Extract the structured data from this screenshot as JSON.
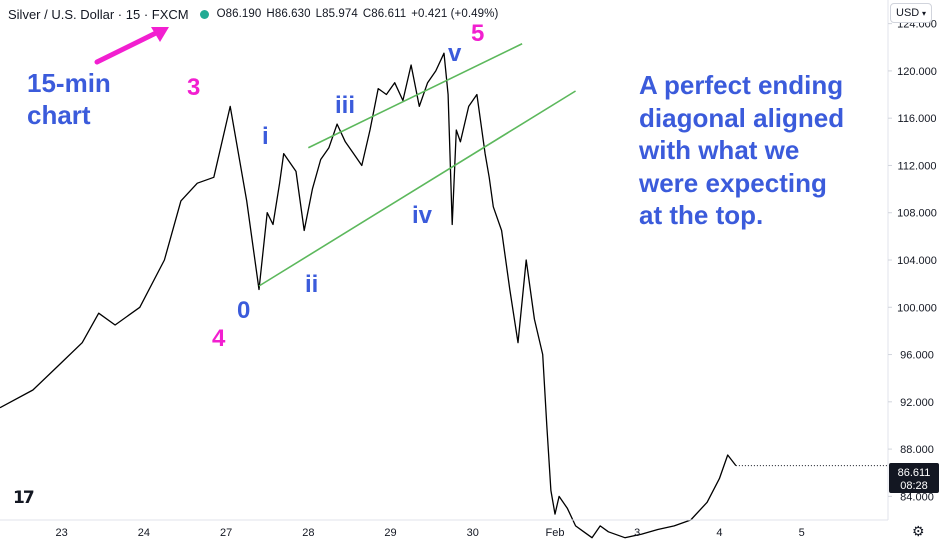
{
  "header": {
    "symbol": "Silver / U.S. Dollar · 15 · FXCM",
    "open": "O86.190",
    "high": "H86.630",
    "low": "L85.974",
    "close": "C86.611",
    "change": "+0.421 (+0.49%)"
  },
  "currency_label": "USD",
  "price_label": {
    "value": "86.611",
    "timer": "08:28"
  },
  "annotations": {
    "chart_note": "15-min\nchart",
    "main_note": "A perfect ending\ndiagonal aligned\nwith what we\nwere expecting\nat the top.",
    "label_3": "3",
    "label_4": "4",
    "label_5": "5",
    "label_0": "0",
    "label_i": "i",
    "label_ii": "ii",
    "label_iii": "iii",
    "label_iv": "iv",
    "label_v": "v"
  },
  "colors": {
    "wave_blue": "#3b5bdb",
    "wave_pink": "#f21fd0",
    "trendline": "#5cb85c",
    "price_line": "#000000",
    "arrow": "#f21fd0"
  },
  "chart_data": {
    "type": "line",
    "symbol": "XAGUSD",
    "interval": "15",
    "ylim": [
      82,
      126
    ],
    "yticks": [
      84,
      88,
      92,
      96,
      100,
      104,
      108,
      112,
      116,
      120,
      124
    ],
    "ytick_labels": [
      "84.000",
      "88.000",
      "92.000",
      "96.000",
      "100.000",
      "104.000",
      "108.000",
      "112.000",
      "116.000",
      "120.000",
      "124.000"
    ],
    "xtick_labels": [
      "23",
      "24",
      "27",
      "28",
      "29",
      "30",
      "Feb",
      "3",
      "4",
      "5"
    ],
    "xtick_positions": [
      0.35,
      1.35,
      2.35,
      3.35,
      4.35,
      5.35,
      6.35,
      7.35,
      8.35,
      9.35
    ],
    "xlim": [
      -0.4,
      10.4
    ],
    "series": [
      {
        "x": [
          -0.4,
          0.0,
          0.3,
          0.6,
          0.8,
          1.0,
          1.3,
          1.6,
          1.8,
          2.0,
          2.2,
          2.4,
          2.6,
          2.75,
          2.85,
          2.92,
          3.0,
          3.05,
          3.2,
          3.3,
          3.4,
          3.5,
          3.6,
          3.7,
          3.8,
          3.9,
          4.0,
          4.1,
          4.2,
          4.3,
          4.4,
          4.5,
          4.6,
          4.7,
          4.8,
          4.9,
          5.0,
          5.05,
          5.1,
          5.15,
          5.2,
          5.3,
          5.4,
          5.5,
          5.55,
          5.6,
          5.7,
          5.8,
          5.9,
          6.0,
          6.1,
          6.2,
          6.25,
          6.3,
          6.35,
          6.4,
          6.5,
          6.6,
          6.7,
          6.8,
          6.9,
          7.0,
          7.2,
          7.4,
          7.6,
          7.8,
          8.0,
          8.2,
          8.35,
          8.45,
          8.55
        ],
        "y": [
          91.5,
          93.0,
          95.0,
          97.0,
          99.5,
          98.5,
          100.0,
          104.0,
          109.0,
          110.5,
          111.0,
          117.0,
          109.0,
          101.5,
          108.0,
          107.0,
          110.5,
          113.0,
          111.5,
          106.5,
          110.0,
          112.5,
          113.5,
          115.5,
          114.0,
          113.0,
          112.0,
          115.0,
          118.5,
          118.0,
          119.0,
          117.5,
          120.5,
          117.0,
          119.0,
          120.0,
          121.5,
          118.0,
          107.0,
          115.0,
          114.0,
          117.0,
          118.0,
          113.0,
          111.0,
          108.5,
          106.5,
          101.5,
          97.0,
          104.0,
          99.0,
          96.0,
          90.0,
          84.5,
          82.5,
          84.0,
          83.0,
          81.5,
          81.0,
          80.5,
          81.5,
          81.0,
          80.5,
          80.8,
          81.2,
          81.5,
          82.0,
          83.5,
          85.5,
          87.5,
          86.6
        ]
      }
    ],
    "trendlines": [
      {
        "name": "upper",
        "x": [
          3.35,
          5.95
        ],
        "y": [
          113.5,
          122.3
        ]
      },
      {
        "name": "lower",
        "x": [
          2.75,
          6.6
        ],
        "y": [
          101.8,
          118.3
        ]
      }
    ]
  }
}
